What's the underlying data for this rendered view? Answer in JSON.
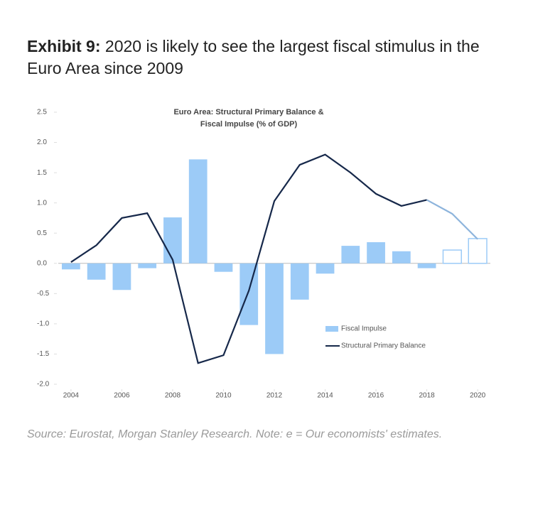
{
  "exhibit": {
    "label": "Exhibit 9:",
    "text": "2020 is likely to see the largest fiscal stimulus in the Euro Area since 2009"
  },
  "source": "Source: Eurostat, Morgan Stanley Research. Note: e = Our economists' estimates.",
  "chart_data": {
    "type": "bar_line",
    "title": [
      "Euro Area: Structural Primary Balance &",
      "Fiscal Impulse (% of GDP)"
    ],
    "x": [
      2004,
      2005,
      2006,
      2007,
      2008,
      2009,
      2010,
      2011,
      2012,
      2013,
      2014,
      2015,
      2016,
      2017,
      2018,
      2019,
      2020
    ],
    "xlim": [
      2003.5,
      2020.5
    ],
    "xticks": [
      2004,
      2006,
      2008,
      2010,
      2012,
      2014,
      2016,
      2018,
      2020
    ],
    "ylim": [
      -2.0,
      2.5
    ],
    "yticks": [
      {
        "value": -2.0,
        "label": "-2.0"
      },
      -1.5,
      {
        "value": -1.0,
        "label": "-1.0"
      },
      -0.5,
      {
        "value": 0.0,
        "label": "0.0"
      },
      0.5,
      {
        "value": 1.0,
        "label": "1.0"
      },
      1.5,
      {
        "value": 2.0,
        "label": "2.0"
      },
      2.5
    ],
    "legend": "lower right",
    "series": [
      {
        "name": "Fiscal Impulse",
        "kind": "bar",
        "color": "#9ccbf7",
        "estimate_color": "#ffffff",
        "values": [
          -0.1,
          -0.27,
          -0.44,
          -0.08,
          0.76,
          1.72,
          -0.14,
          -1.02,
          -1.5,
          -0.6,
          -0.17,
          0.29,
          0.35,
          0.2,
          -0.08,
          0.22,
          0.41
        ],
        "estimated": [
          false,
          false,
          false,
          false,
          false,
          false,
          false,
          false,
          false,
          false,
          false,
          false,
          false,
          false,
          false,
          true,
          true
        ]
      },
      {
        "name": "Structural Primary Balance",
        "kind": "line",
        "color": "#16284a",
        "estimate_color": "#8db4dc",
        "values": [
          0.02,
          0.3,
          0.75,
          0.83,
          0.06,
          -1.65,
          -1.52,
          -0.45,
          1.03,
          1.63,
          1.8,
          1.5,
          1.15,
          0.95,
          1.05,
          0.82,
          0.4
        ],
        "estimated": [
          false,
          false,
          false,
          false,
          false,
          false,
          false,
          false,
          false,
          false,
          false,
          false,
          false,
          false,
          false,
          true,
          true
        ]
      }
    ]
  }
}
